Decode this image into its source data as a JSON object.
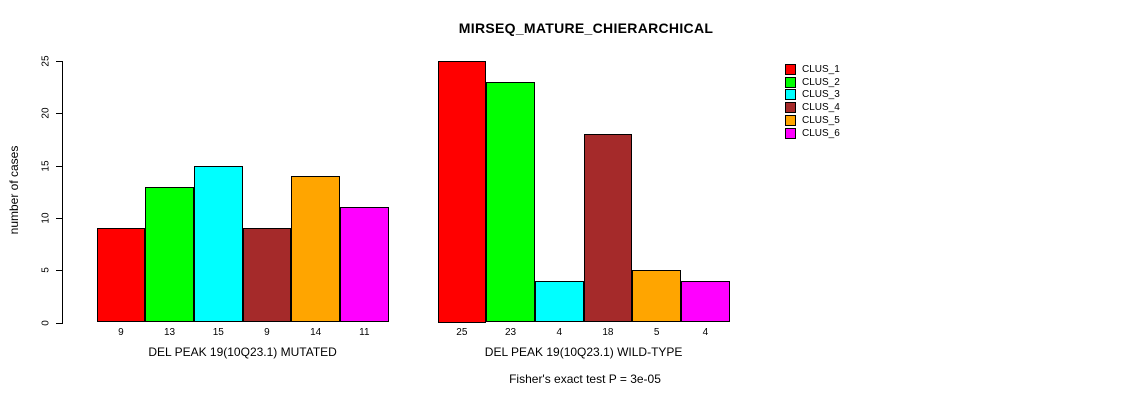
{
  "chart_data": {
    "type": "bar",
    "title": "MIRSEQ_MATURE_CHIERARCHICAL",
    "ylabel": "number of cases",
    "ylim": [
      0,
      25
    ],
    "yticks": [
      0,
      5,
      10,
      15,
      20,
      25
    ],
    "categories": [
      "CLUS_1",
      "CLUS_2",
      "CLUS_3",
      "CLUS_4",
      "CLUS_5",
      "CLUS_6"
    ],
    "colors": [
      "#ff0000",
      "#00ff00",
      "#00ffff",
      "#a52a2a",
      "#ffa500",
      "#ff00ff"
    ],
    "groups": [
      {
        "label": "DEL PEAK 19(10Q23.1) MUTATED",
        "values": [
          9,
          13,
          15,
          9,
          14,
          11
        ]
      },
      {
        "label": "DEL PEAK 19(10Q23.1) WILD-TYPE",
        "values": [
          25,
          23,
          4,
          18,
          5,
          4
        ]
      }
    ],
    "grid": false,
    "legend_position": "right",
    "annotation": "Fisher's exact test P = 3e-05"
  }
}
